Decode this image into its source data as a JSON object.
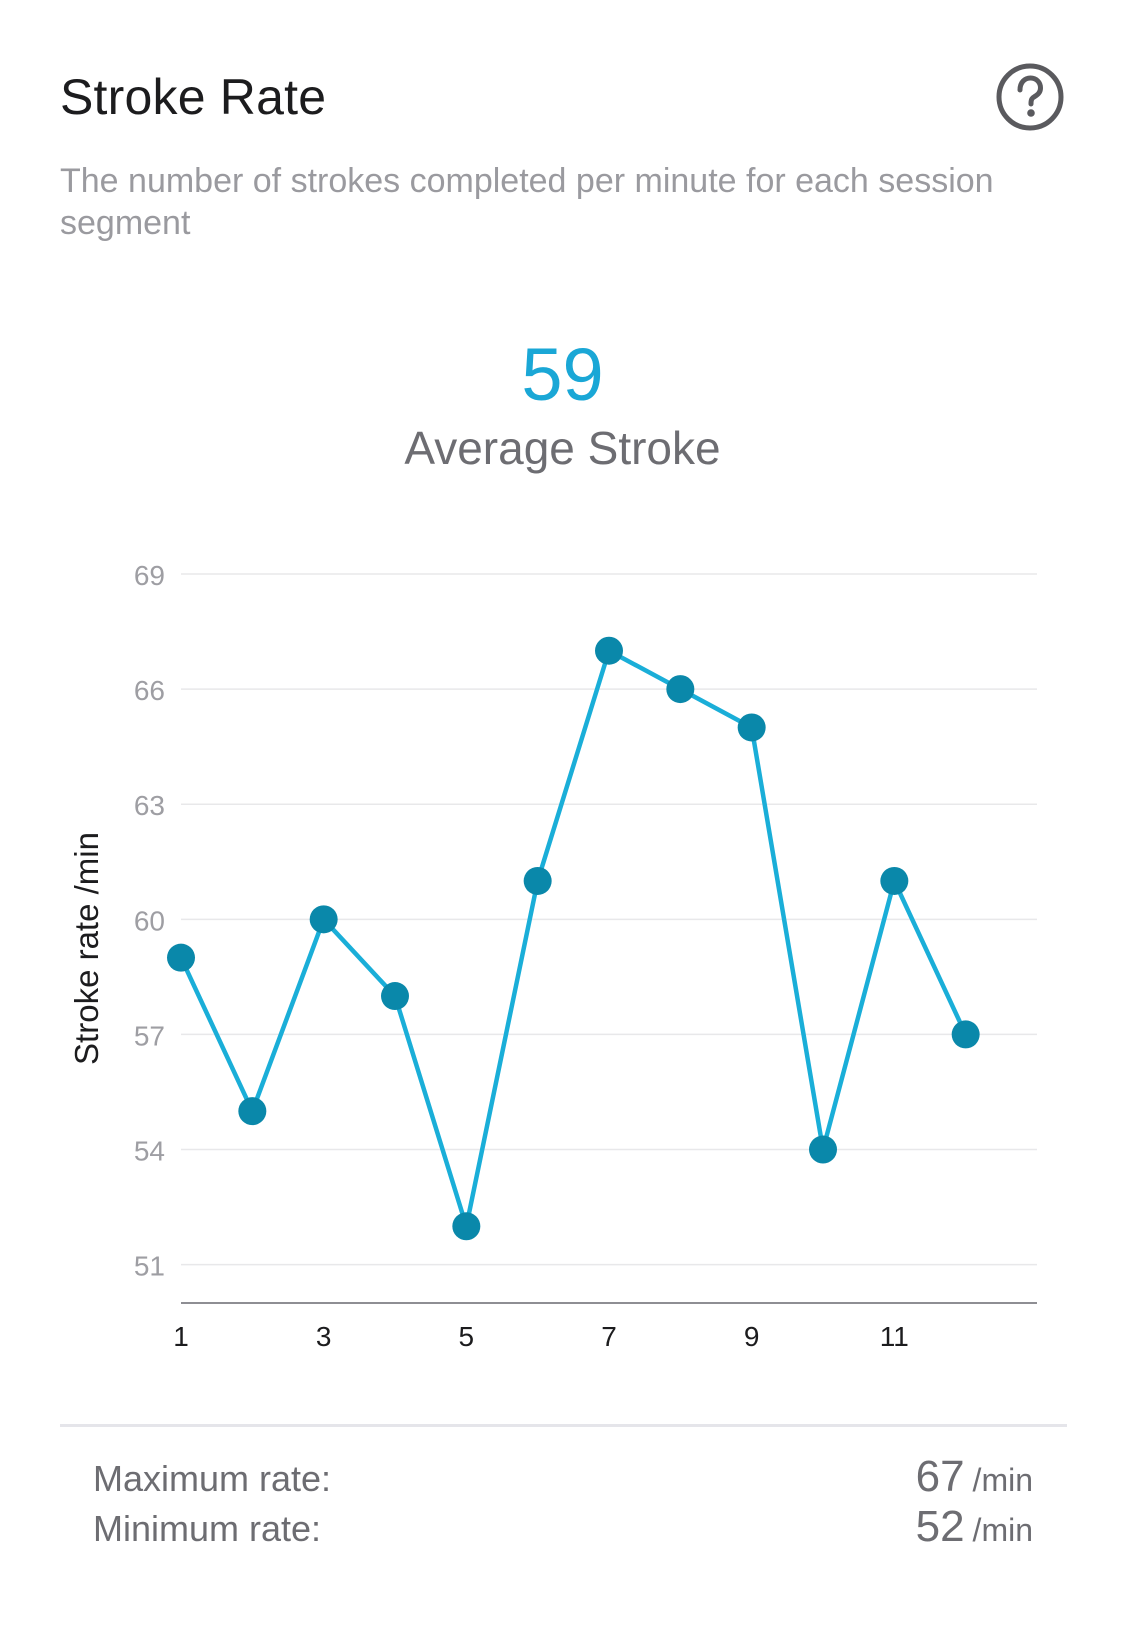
{
  "header": {
    "title": "Stroke Rate",
    "help_icon": "question-circle-icon"
  },
  "description": "The number of strokes completed per minute for each session segment",
  "summary": {
    "value": "59",
    "label": "Average Stroke"
  },
  "chart_data": {
    "type": "line",
    "x": [
      1,
      2,
      3,
      4,
      5,
      6,
      7,
      8,
      9,
      10,
      11,
      12
    ],
    "x_ticks": [
      "1",
      "3",
      "5",
      "7",
      "9",
      "11"
    ],
    "x_tick_values": [
      1,
      3,
      5,
      7,
      9,
      11
    ],
    "series": [
      {
        "values": [
          59,
          55,
          60,
          58,
          52,
          61,
          67,
          66,
          65,
          54,
          61,
          57
        ]
      }
    ],
    "y_ticks": [
      "69",
      "66",
      "63",
      "60",
      "57",
      "54",
      "51"
    ],
    "y_tick_values": [
      69,
      66,
      63,
      60,
      57,
      54,
      51
    ],
    "ylim": [
      50,
      69
    ],
    "xlim": [
      1,
      13
    ],
    "ylabel": "Stroke rate /min",
    "xlabel": "",
    "grid": true,
    "colors": {
      "line": "#1aaed8",
      "point": "#0a88aa",
      "grid": "#e8e8ea",
      "axis": "#8e8e93",
      "tick": "#9e9ea3"
    }
  },
  "stats": {
    "max_label": "Maximum rate:",
    "max_value": "67",
    "max_unit": "/min",
    "min_label": "Minimum rate:",
    "min_value": "52",
    "min_unit": "/min"
  }
}
